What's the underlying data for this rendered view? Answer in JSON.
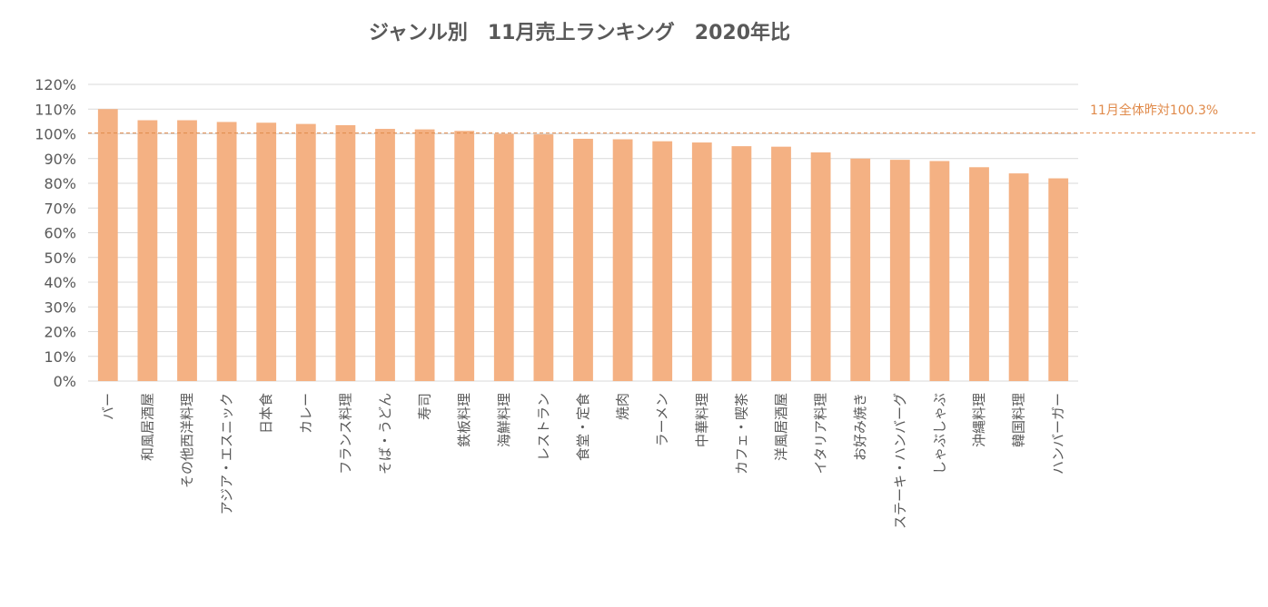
{
  "chart_data": {
    "type": "bar",
    "title": "ジャンル別　11月売上ランキング　2020年比",
    "categories": [
      "バー",
      "和風居酒屋",
      "その他西洋料理",
      "アジア・エスニック",
      "日本食",
      "カレー",
      "フランス料理",
      "そば・うどん",
      "寿司",
      "鉄板料理",
      "海鮮料理",
      "レストラン",
      "食堂・定食",
      "焼肉",
      "ラーメン",
      "中華料理",
      "カフェ・喫茶",
      "洋風居酒屋",
      "イタリア料理",
      "お好み焼き",
      "ステーキ・ハンバーグ",
      "しゃぶしゃぶ",
      "沖縄料理",
      "韓国料理",
      "ハンバーガー"
    ],
    "values": [
      110.0,
      105.5,
      105.5,
      104.8,
      104.5,
      104.0,
      103.5,
      102.0,
      101.8,
      101.2,
      100.0,
      99.8,
      98.0,
      97.8,
      97.0,
      96.5,
      95.0,
      94.8,
      92.5,
      90.0,
      89.5,
      89.0,
      86.5,
      84.0,
      82.0
    ],
    "ylim": [
      0,
      120
    ],
    "yticks": [
      "0%",
      "10%",
      "20%",
      "30%",
      "40%",
      "50%",
      "60%",
      "70%",
      "80%",
      "90%",
      "100%",
      "110%",
      "120%"
    ],
    "grid": true,
    "bar_color": "#f4b183",
    "reference_line": {
      "value": 100.3,
      "label": "11月全体昨対100.3%",
      "color": "#e08a4a"
    }
  }
}
